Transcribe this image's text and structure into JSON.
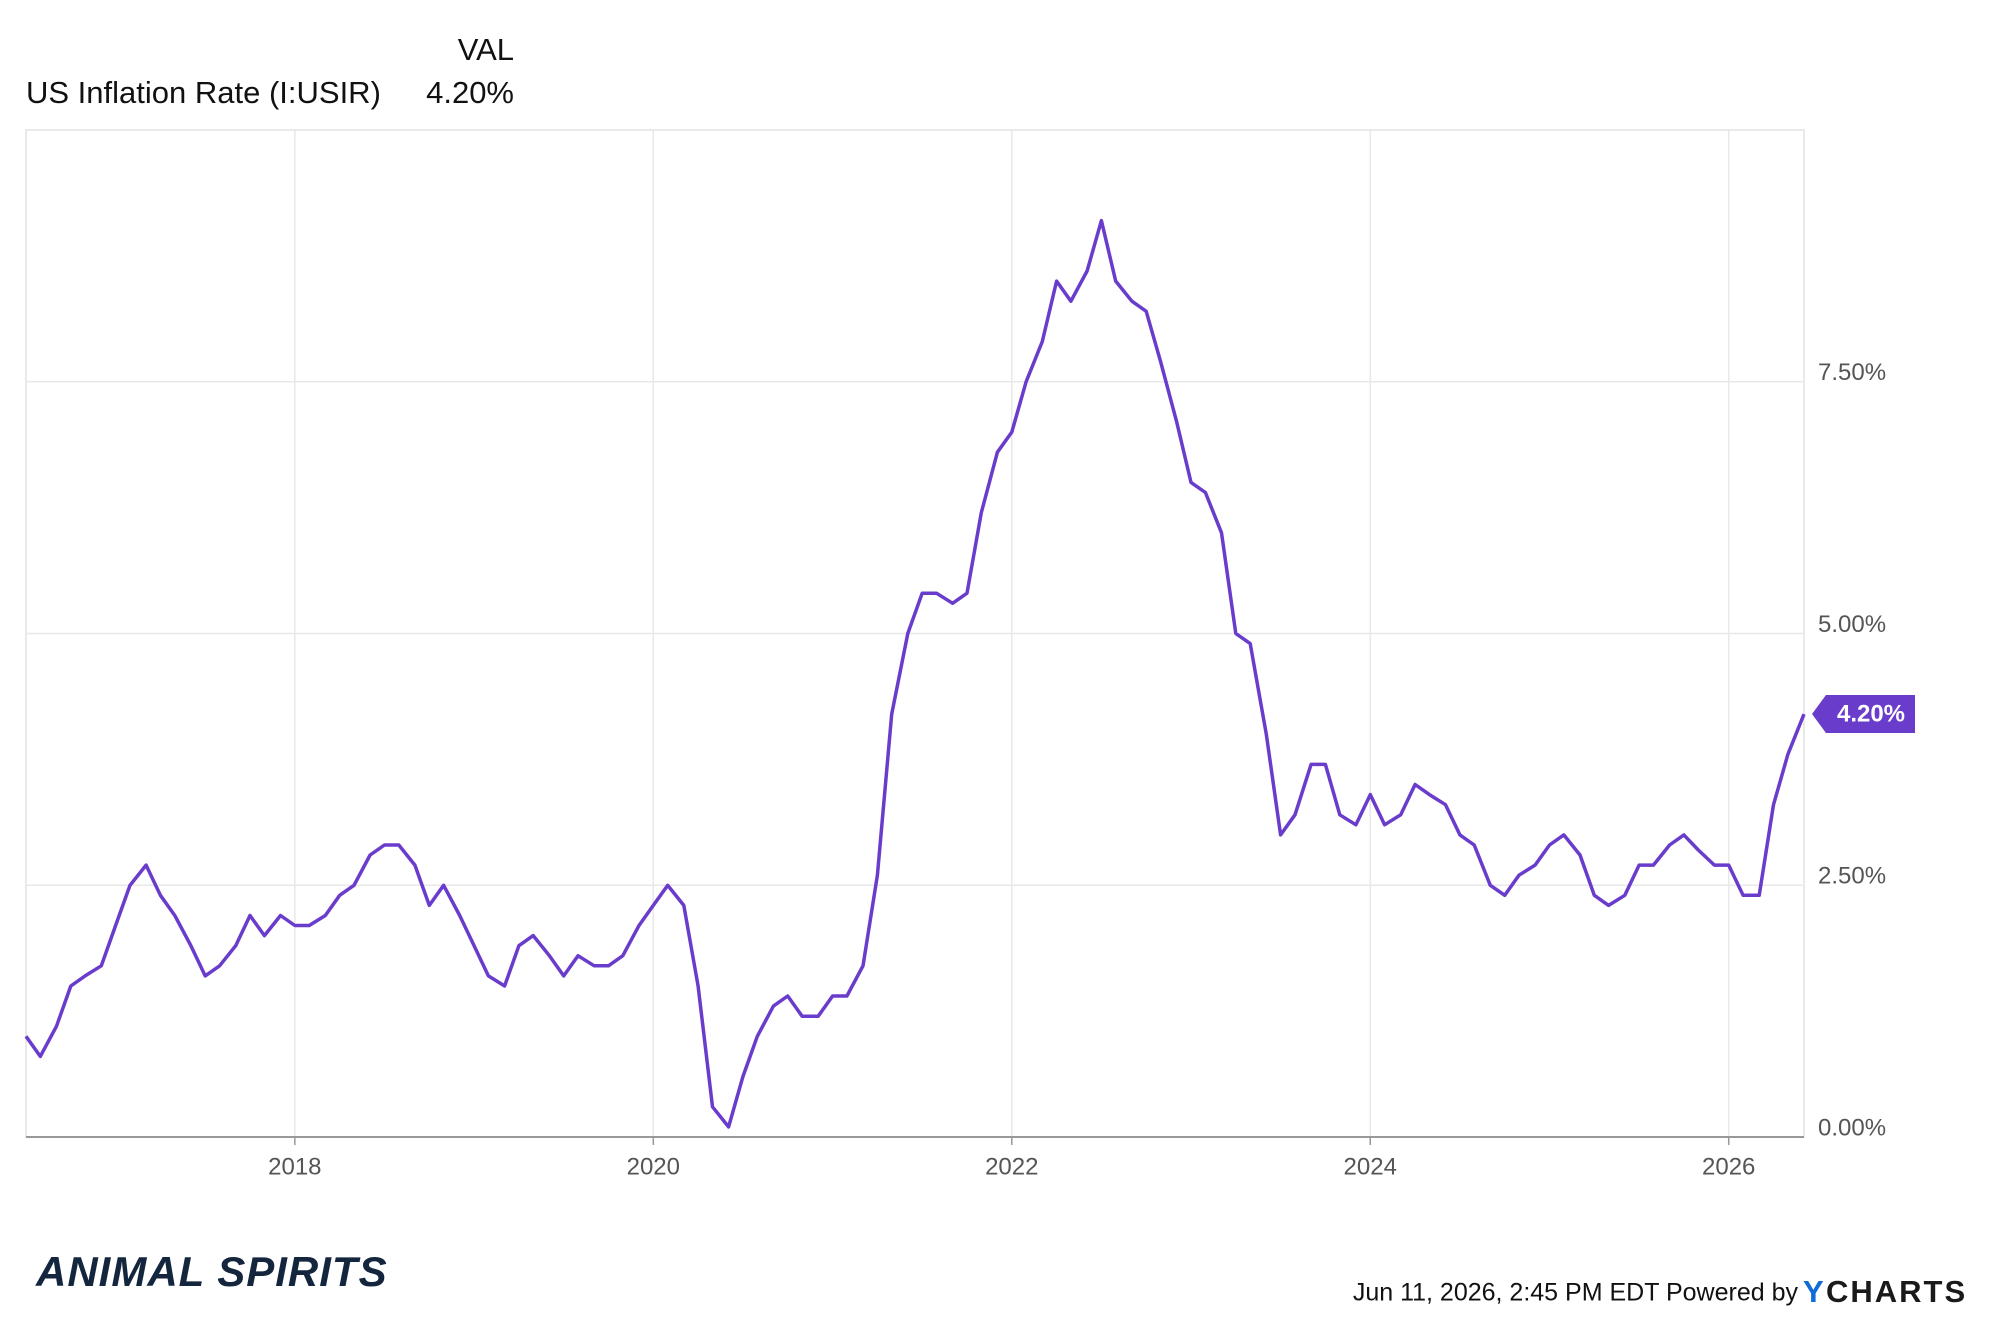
{
  "chart_data": {
    "type": "line",
    "header": {
      "column": "VAL",
      "value_label": "4.20%"
    },
    "series": [
      {
        "name": "US Inflation Rate (I:USIR)",
        "color": "#6a3ccb",
        "values": [
          1.0,
          0.8,
          1.1,
          1.5,
          1.6,
          1.7,
          2.1,
          2.5,
          2.7,
          2.4,
          2.2,
          1.9,
          1.6,
          1.7,
          1.9,
          2.2,
          2.0,
          2.2,
          2.1,
          2.1,
          2.2,
          2.4,
          2.5,
          2.8,
          2.9,
          2.9,
          2.7,
          2.3,
          2.5,
          2.2,
          1.9,
          1.6,
          1.5,
          1.9,
          2.0,
          1.8,
          1.6,
          1.8,
          1.7,
          1.7,
          1.8,
          2.1,
          2.3,
          2.5,
          2.3,
          1.5,
          0.3,
          0.1,
          0.6,
          1.0,
          1.3,
          1.4,
          1.2,
          1.2,
          1.4,
          1.4,
          1.7,
          2.6,
          4.2,
          5.0,
          5.4,
          5.4,
          5.3,
          5.4,
          6.2,
          6.8,
          7.0,
          7.5,
          7.9,
          8.5,
          8.3,
          8.6,
          9.1,
          8.5,
          8.3,
          8.2,
          7.7,
          7.1,
          6.5,
          6.4,
          6.0,
          5.0,
          4.9,
          4.0,
          3.0,
          3.2,
          3.7,
          3.7,
          3.2,
          3.1,
          3.4,
          3.1,
          3.2,
          3.5,
          3.4,
          3.3,
          3.0,
          2.9,
          2.5,
          2.4,
          2.6,
          2.7,
          2.9,
          3.0,
          2.8,
          2.4,
          2.3,
          2.4,
          2.7,
          2.7,
          2.9,
          3.0,
          2.85,
          2.7,
          2.7,
          2.4,
          2.4,
          3.3,
          3.8,
          4.2
        ]
      }
    ],
    "x": [
      2016.5,
      2016.58,
      2016.67,
      2016.75,
      2016.83,
      2016.92,
      2017,
      2017.08,
      2017.17,
      2017.25,
      2017.33,
      2017.42,
      2017.5,
      2017.58,
      2017.67,
      2017.75,
      2017.83,
      2017.92,
      2018,
      2018.08,
      2018.17,
      2018.25,
      2018.33,
      2018.42,
      2018.5,
      2018.58,
      2018.67,
      2018.75,
      2018.83,
      2018.92,
      2019,
      2019.08,
      2019.17,
      2019.25,
      2019.33,
      2019.42,
      2019.5,
      2019.58,
      2019.67,
      2019.75,
      2019.83,
      2019.92,
      2020,
      2020.08,
      2020.17,
      2020.25,
      2020.33,
      2020.42,
      2020.5,
      2020.58,
      2020.67,
      2020.75,
      2020.83,
      2020.92,
      2021,
      2021.08,
      2021.17,
      2021.25,
      2021.33,
      2021.42,
      2021.5,
      2021.58,
      2021.67,
      2021.75,
      2021.83,
      2021.92,
      2022,
      2022.08,
      2022.17,
      2022.25,
      2022.33,
      2022.42,
      2022.5,
      2022.58,
      2022.67,
      2022.75,
      2022.83,
      2022.92,
      2023,
      2023.08,
      2023.17,
      2023.25,
      2023.33,
      2023.42,
      2023.5,
      2023.58,
      2023.67,
      2023.75,
      2023.83,
      2023.92,
      2024,
      2024.08,
      2024.17,
      2024.25,
      2024.33,
      2024.42,
      2024.5,
      2024.58,
      2024.67,
      2024.75,
      2024.83,
      2024.92,
      2025,
      2025.08,
      2025.17,
      2025.25,
      2025.33,
      2025.42,
      2025.5,
      2025.58,
      2025.67,
      2025.75,
      2025.83,
      2025.92,
      2026,
      2026.08,
      2026.17,
      2026.25,
      2026.33,
      2026.42
    ],
    "xlim": [
      2016.5,
      2026.42
    ],
    "xticks": [
      2018,
      2020,
      2022,
      2024,
      2026
    ],
    "ylim": [
      0,
      10
    ],
    "yticks": [
      {
        "value": 0,
        "label": "0.00%"
      },
      {
        "value": 2.5,
        "label": "2.50%"
      },
      {
        "value": 5,
        "label": "5.00%"
      },
      {
        "value": 7.5,
        "label": "7.50%"
      }
    ],
    "grid": true,
    "footer": {
      "timestamp": "Jun 11, 2026, 2:45 PM EDT Powered by",
      "logo_y": "Y",
      "logo_rest": "CHARTS",
      "brand": "ANIMAL SPIRITS"
    }
  }
}
